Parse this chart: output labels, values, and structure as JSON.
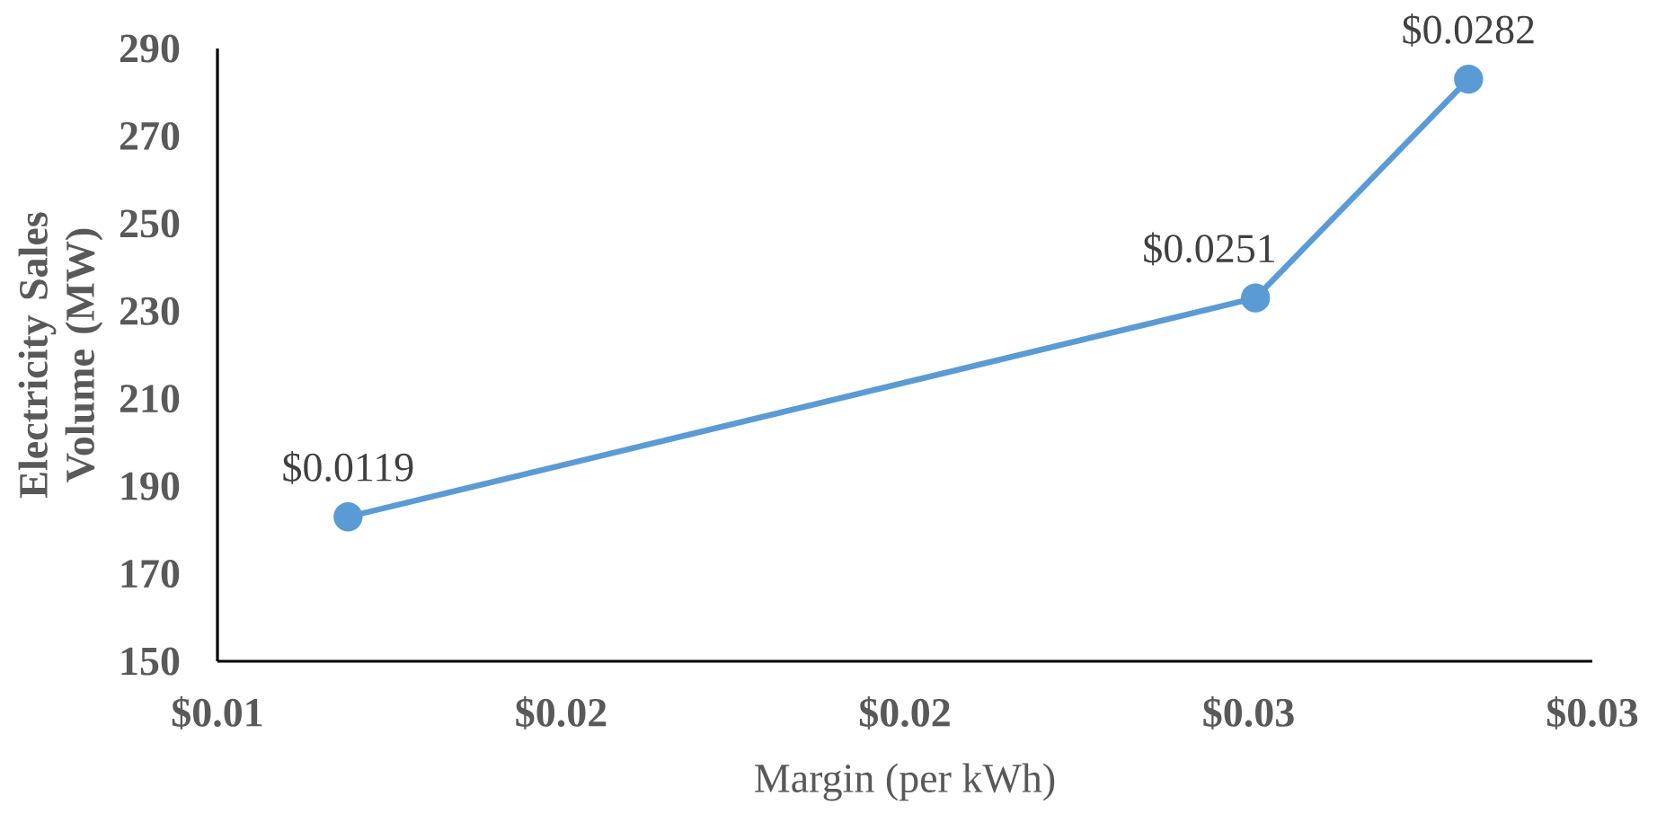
{
  "chart_data": {
    "type": "line",
    "xlabel": "Margin (per kWh)",
    "ylabel": "Electricity Sales Volume (MW)",
    "x": [
      0.0119,
      0.0251,
      0.0282
    ],
    "series": [
      {
        "color": "#5b9bd5",
        "values": [
          183,
          233,
          283
        ]
      }
    ],
    "annotations": [
      {
        "text": "$0.0119",
        "x": 0.0119,
        "y": 183
      },
      {
        "text": "$0.0251",
        "x": 0.0251,
        "y": 233
      },
      {
        "text": "$0.0282",
        "x": 0.0282,
        "y": 283
      }
    ],
    "xlim": [
      0.01,
      0.03
    ],
    "xticks": [
      {
        "value": 0.01,
        "label": "$0.01"
      },
      {
        "value": 0.015,
        "label": "$0.02"
      },
      {
        "value": 0.02,
        "label": "$0.02"
      },
      {
        "value": 0.025,
        "label": "$0.03"
      },
      {
        "value": 0.03,
        "label": "$0.03"
      }
    ],
    "ylim": [
      150,
      290
    ],
    "yticks": [
      150,
      170,
      190,
      210,
      230,
      250,
      270,
      290
    ],
    "marker": "circle",
    "line_style": "solid"
  }
}
